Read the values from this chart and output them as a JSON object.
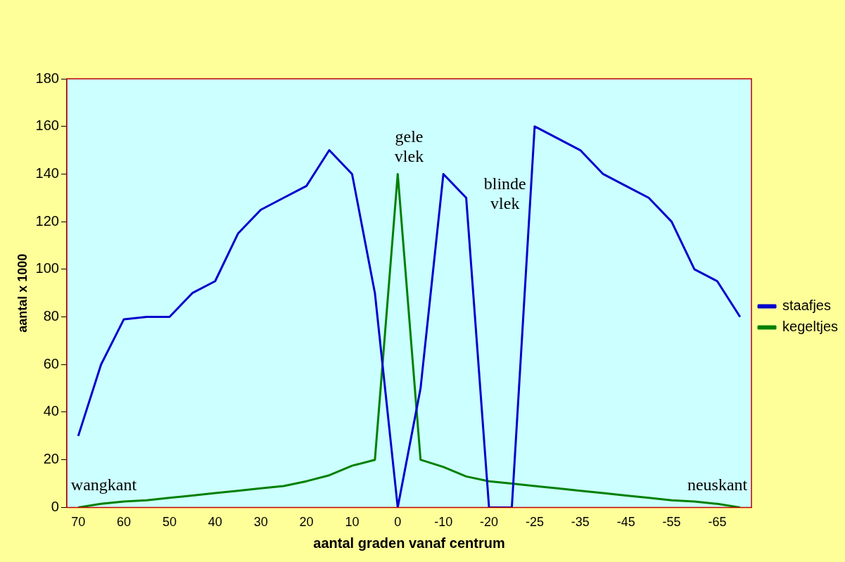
{
  "chart_data": {
    "type": "line",
    "xlabel": "aantal graden vanaf centrum",
    "ylabel": "aantal x 1000",
    "categories": [
      "70",
      null,
      "60",
      null,
      "50",
      null,
      "40",
      null,
      "30",
      null,
      "20",
      null,
      "10",
      null,
      "0",
      null,
      "-10",
      null,
      "-20",
      null,
      "-25",
      null,
      "-35",
      null,
      "-45",
      null,
      "-55",
      null,
      "-65",
      null
    ],
    "series": [
      {
        "name": "staafjes",
        "color": "#0000cc",
        "values": [
          30,
          60,
          79,
          80,
          80,
          90,
          95,
          115,
          125,
          130,
          135,
          150,
          140,
          90,
          0,
          50,
          140,
          130,
          0,
          0,
          160,
          155,
          150,
          140,
          135,
          130,
          120,
          100,
          95,
          80
        ]
      },
      {
        "name": "kegeltjes",
        "color": "#008000",
        "values": [
          0,
          1.5,
          2.5,
          3,
          4,
          5,
          6,
          7,
          8,
          9,
          11,
          13.5,
          17.5,
          20,
          140,
          20,
          17,
          13,
          11,
          10,
          9,
          8,
          7,
          6,
          5,
          4,
          3,
          2.5,
          1.5,
          0
        ]
      }
    ],
    "ylim": [
      0,
      180
    ],
    "yticks": [
      0,
      20,
      40,
      60,
      80,
      100,
      120,
      140,
      160,
      180
    ],
    "grid": false,
    "legend": "right",
    "marker": "none",
    "line_style": "solid",
    "annotations": [
      "gele vlek",
      "blinde vlek",
      "wangkant",
      "neuskant"
    ]
  }
}
